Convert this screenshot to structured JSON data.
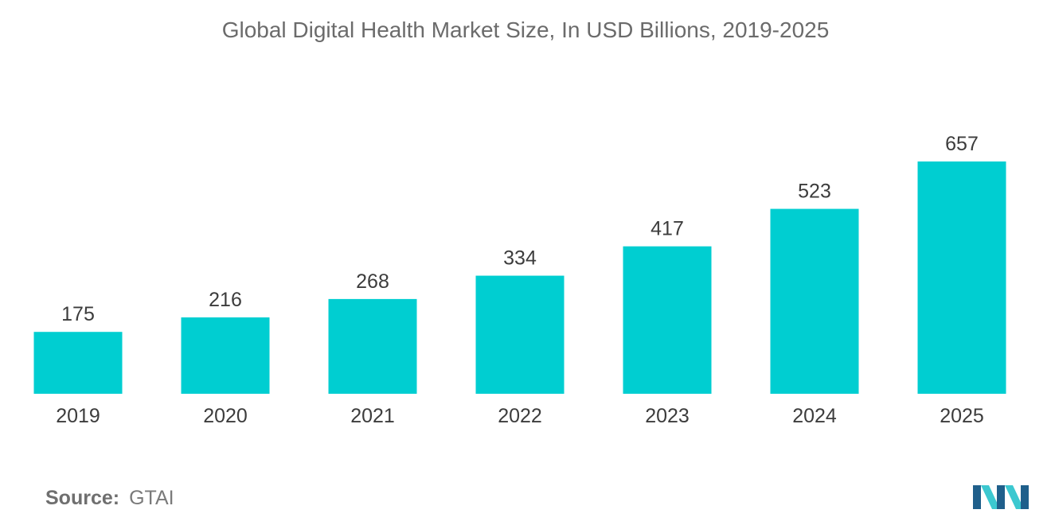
{
  "colors": {
    "bar": "#00ced1",
    "text": "#3c3c3c",
    "title": "#6b6b6b",
    "logo_dark": "#1f5f8b",
    "logo_light": "#3cc8d0"
  },
  "source": {
    "label": "Source:",
    "value": "GTAI"
  },
  "logo": {
    "icon": "mordor-intelligence-logo-icon"
  },
  "chart_data": {
    "type": "bar",
    "title": "Global Digital Health Market Size, In USD Billions, 2019-2025",
    "categories": [
      "2019",
      "2020",
      "2021",
      "2022",
      "2023",
      "2024",
      "2025"
    ],
    "values": [
      175,
      216,
      268,
      334,
      417,
      523,
      657
    ],
    "xlabel": "",
    "ylabel": "",
    "ylim": [
      0,
      657
    ],
    "grid": false,
    "legend": "none",
    "data_labels": true
  }
}
